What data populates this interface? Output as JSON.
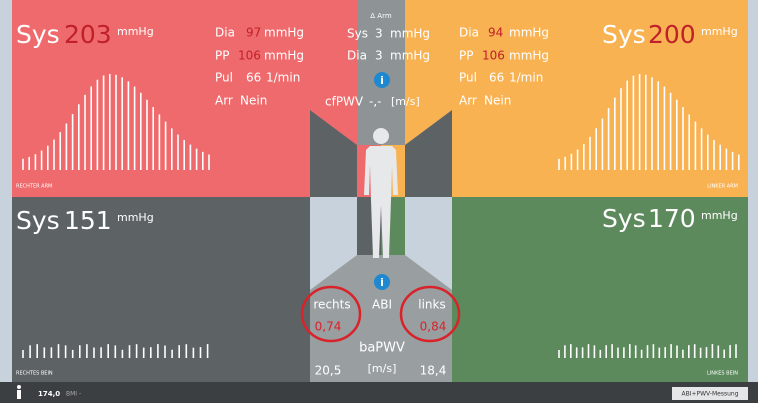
{
  "right_arm": {
    "label": "RECHTER ARM",
    "sys": {
      "label": "Sys",
      "value": "203",
      "unit": "mmHg"
    },
    "dia": {
      "label": "Dia",
      "value": "97",
      "unit": "mmHg"
    },
    "pp": {
      "label": "PP",
      "value": "106",
      "unit": "mmHg"
    },
    "pul": {
      "label": "Pul",
      "value": "66",
      "unit": "1/min"
    },
    "arr": {
      "label": "Arr",
      "value": "Nein"
    }
  },
  "left_arm": {
    "label": "LINKER ARM",
    "sys": {
      "label": "Sys",
      "value": "200",
      "unit": "mmHg"
    },
    "dia": {
      "label": "Dia",
      "value": "94",
      "unit": "mmHg"
    },
    "pp": {
      "label": "PP",
      "value": "106",
      "unit": "mmHg"
    },
    "pul": {
      "label": "Pul",
      "value": "66",
      "unit": "1/min"
    },
    "arr": {
      "label": "Arr",
      "value": "Nein"
    }
  },
  "delta_arm": {
    "title": "Δ Arm",
    "sys": {
      "label": "Sys",
      "value": "3",
      "unit": "mmHg"
    },
    "dia": {
      "label": "Dia",
      "value": "3",
      "unit": "mmHg"
    },
    "info": "i",
    "cfpwv": {
      "label": "cfPWV",
      "value": "-,-",
      "unit": "[m/s]"
    }
  },
  "right_leg": {
    "label": "RECHTES BEIN",
    "sys": {
      "label": "Sys",
      "value": "151",
      "unit": "mmHg"
    }
  },
  "left_leg": {
    "label": "LINKES BEIN",
    "sys": {
      "label": "Sys",
      "value": "170",
      "unit": "mmHg"
    }
  },
  "abi": {
    "info": "i",
    "title": "ABI",
    "right_label": "rechts",
    "left_label": "links",
    "right_value": "0,74",
    "left_value": "0,84",
    "pwv_title": "baPWV",
    "right_pwv": "20,5",
    "left_pwv": "18,4",
    "pwv_unit": "[m/s]"
  },
  "footer": {
    "height": "174,0",
    "bmi": "BMI -",
    "button": "ABI+PWV-Messung"
  }
}
